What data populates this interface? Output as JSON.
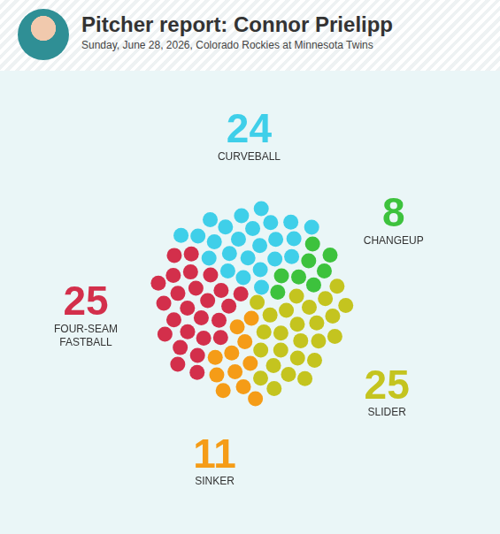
{
  "chart_data": {
    "type": "dot",
    "title": "Pitcher report: Connor Prielipp",
    "subtitle": "Sunday, June 28, 2026, Colorado Rockies at Minnesota Twins",
    "categories": [
      "CURVEBALL",
      "CHANGEUP",
      "SLIDER",
      "SINKER",
      "FOUR-SEAM FASTBALL"
    ],
    "values": [
      24,
      8,
      25,
      11,
      25
    ],
    "colors": [
      "#3fcfe9",
      "#3dc23d",
      "#c4c41f",
      "#f59c17",
      "#d32f4b"
    ],
    "data_labels": true,
    "tick_labels": false
  }
}
